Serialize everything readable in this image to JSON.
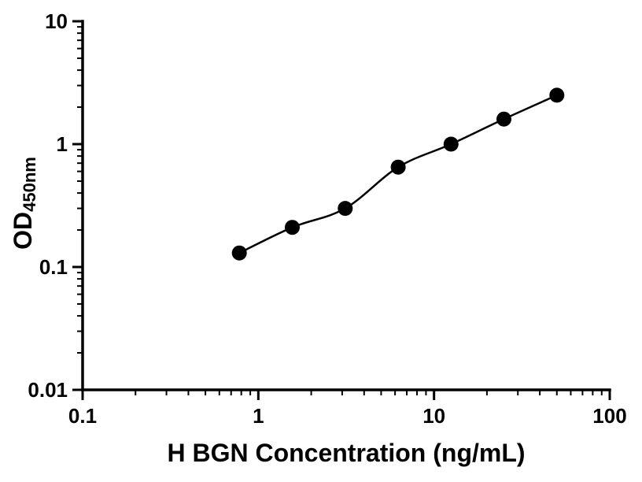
{
  "chart_data": {
    "type": "scatter",
    "title": "",
    "xlabel": "H BGN Concentration (ng/mL)",
    "ylabel_main": "OD",
    "ylabel_sub": "450nm",
    "x_scale": "log",
    "y_scale": "log",
    "xlim": [
      0.1,
      100
    ],
    "ylim": [
      0.01,
      10
    ],
    "grid": false,
    "legend": "none",
    "axis_color": "#000000",
    "line_color": "#000000",
    "marker_color": "#000000",
    "x_ticks": [
      {
        "value": 0.1,
        "label": "0.1"
      },
      {
        "value": 1,
        "label": "1"
      },
      {
        "value": 10,
        "label": "10"
      },
      {
        "value": 100,
        "label": "100"
      }
    ],
    "y_ticks": [
      {
        "value": 0.01,
        "label": "0.01"
      },
      {
        "value": 0.1,
        "label": "0.1"
      },
      {
        "value": 1,
        "label": "1"
      },
      {
        "value": 10,
        "label": "10"
      }
    ],
    "points": {
      "x": [
        0.78,
        1.56,
        3.125,
        6.25,
        12.5,
        25,
        50
      ],
      "y": [
        0.13,
        0.21,
        0.3,
        0.65,
        1.0,
        1.6,
        2.5
      ]
    }
  }
}
